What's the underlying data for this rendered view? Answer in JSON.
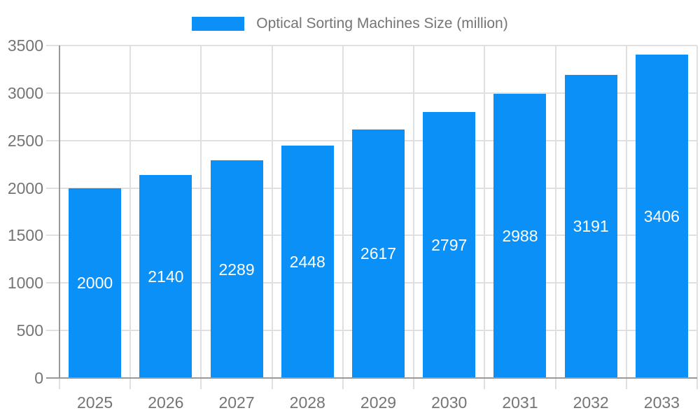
{
  "chart_data": {
    "type": "bar",
    "title": "Optical Sorting Machines Size (million)",
    "legend_position": "top",
    "categories": [
      "2025",
      "2026",
      "2027",
      "2028",
      "2029",
      "2030",
      "2031",
      "2032",
      "2033"
    ],
    "values": [
      2000,
      2140,
      2289,
      2448,
      2617,
      2797,
      2988,
      3191,
      3406
    ],
    "xlabel": "",
    "ylabel": "",
    "ylim": [
      0,
      3500
    ],
    "ytick_step": 500,
    "yticks": [
      0,
      500,
      1000,
      1500,
      2000,
      2500,
      3000,
      3500
    ],
    "grid": true,
    "bar_label_position": "inside-center",
    "colors": {
      "bar": "#0a90f6",
      "bar_label": "#ffffff",
      "grid": "#e0e0e0",
      "axis": "#999999",
      "tick_label": "#757575",
      "legend_text": "#757575",
      "background": "#ffffff"
    }
  }
}
